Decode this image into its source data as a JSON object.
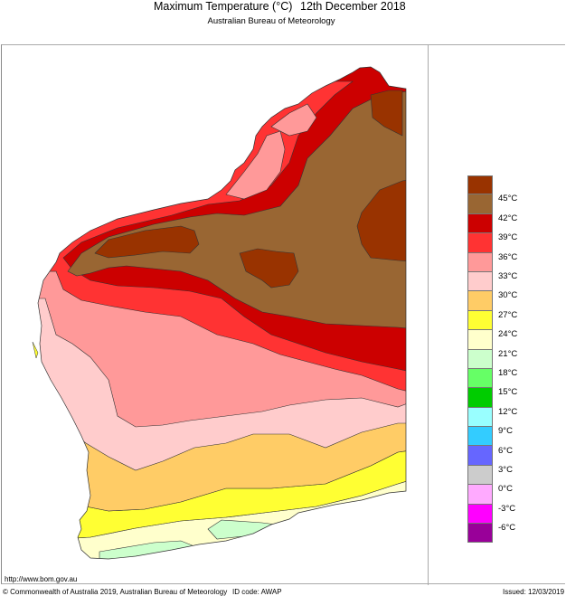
{
  "header": {
    "title": "Maximum Temperature (°C)",
    "date": "12th December 2018",
    "subtitle": "Australian Bureau of Meteorology"
  },
  "map": {
    "region": "Western Australia",
    "variable": "Maximum Temperature",
    "units": "°C"
  },
  "legend": {
    "swatches": [
      {
        "color": "#993300",
        "range": ">45"
      },
      {
        "color": "#996633",
        "range": "42-45"
      },
      {
        "color": "#cc0000",
        "range": "39-42"
      },
      {
        "color": "#ff3333",
        "range": "36-39"
      },
      {
        "color": "#ff9999",
        "range": "33-36"
      },
      {
        "color": "#ffcccc",
        "range": "30-33"
      },
      {
        "color": "#ffcc66",
        "range": "27-30"
      },
      {
        "color": "#ffff33",
        "range": "24-27"
      },
      {
        "color": "#ffffcc",
        "range": "21-24"
      },
      {
        "color": "#ccffcc",
        "range": "18-21"
      },
      {
        "color": "#66ff66",
        "range": "15-18"
      },
      {
        "color": "#00cc00",
        "range": "12-15"
      },
      {
        "color": "#99ffff",
        "range": "9-12"
      },
      {
        "color": "#33ccff",
        "range": "6-9"
      },
      {
        "color": "#6666ff",
        "range": "3-6"
      },
      {
        "color": "#cccccc",
        "range": "0-3"
      },
      {
        "color": "#ffaaff",
        "range": "-3-0"
      },
      {
        "color": "#ff00ff",
        "range": "-6--3"
      },
      {
        "color": "#990099",
        "range": "<-6"
      }
    ],
    "labels": [
      "45°C",
      "42°C",
      "39°C",
      "36°C",
      "33°C",
      "30°C",
      "27°C",
      "24°C",
      "21°C",
      "18°C",
      "15°C",
      "12°C",
      "9°C",
      "6°C",
      "3°C",
      "0°C",
      "-3°C",
      "-6°C"
    ]
  },
  "footer": {
    "url": "http://www.bom.gov.au",
    "copyright": "© Commonwealth of Australia 2019, Australian Bureau of Meteorology",
    "id_code": "ID code: AWAP",
    "issued": "Issued: 12/03/2019"
  }
}
